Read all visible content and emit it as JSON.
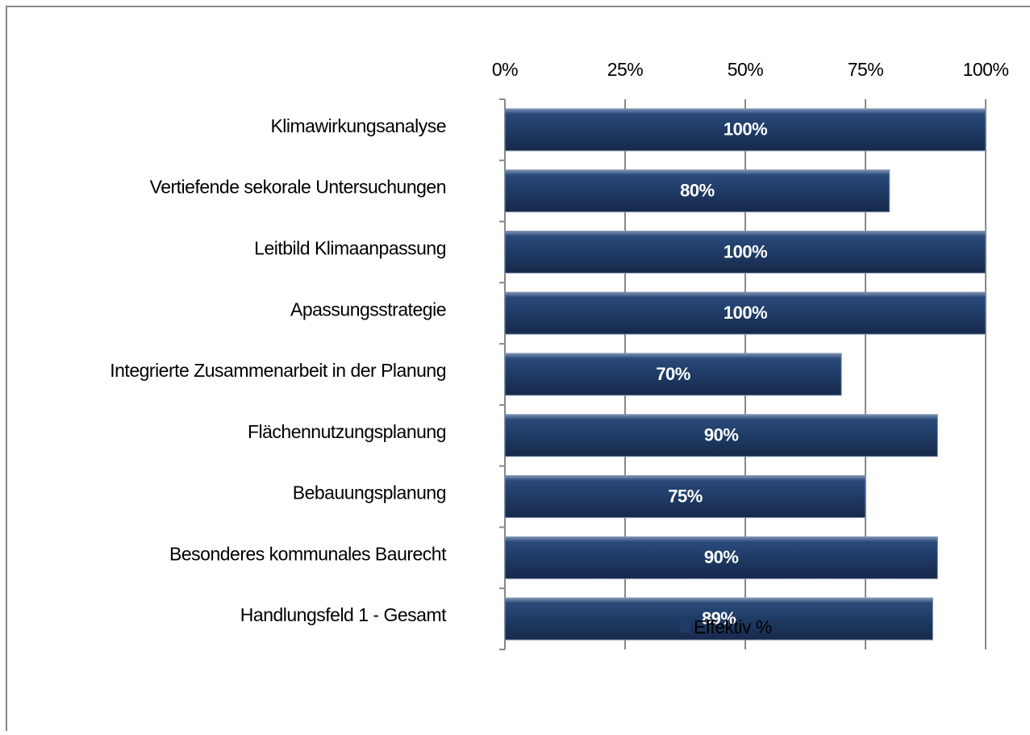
{
  "chart_data": {
    "type": "bar",
    "orientation": "horizontal",
    "categories": [
      "Klimawirkungsanalyse",
      "Vertiefende sekorale Untersuchungen",
      "Leitbild Klimaanpassung",
      "Apassungsstrategie",
      "Integrierte Zusammenarbeit in der Planung",
      "Flächennutzungsplanung",
      "Bebauungsplanung",
      "Besonderes kommunales Baurecht",
      "Handlungsfeld 1 - Gesamt"
    ],
    "series": [
      {
        "name": "Effektiv %",
        "color": "#1f3b66",
        "values": [
          100,
          80,
          100,
          100,
          70,
          90,
          75,
          90,
          89
        ],
        "value_labels": [
          "100%",
          "80%",
          "100%",
          "100%",
          "70%",
          "90%",
          "75%",
          "90%",
          "89%"
        ]
      }
    ],
    "xlim": [
      0,
      100
    ],
    "xticks": [
      {
        "value": 0,
        "label": "0%"
      },
      {
        "value": 25,
        "label": "25%"
      },
      {
        "value": 50,
        "label": "50%"
      },
      {
        "value": 75,
        "label": "75%"
      },
      {
        "value": 100,
        "label": "100%"
      }
    ],
    "grid": true,
    "legend": "bottom"
  }
}
